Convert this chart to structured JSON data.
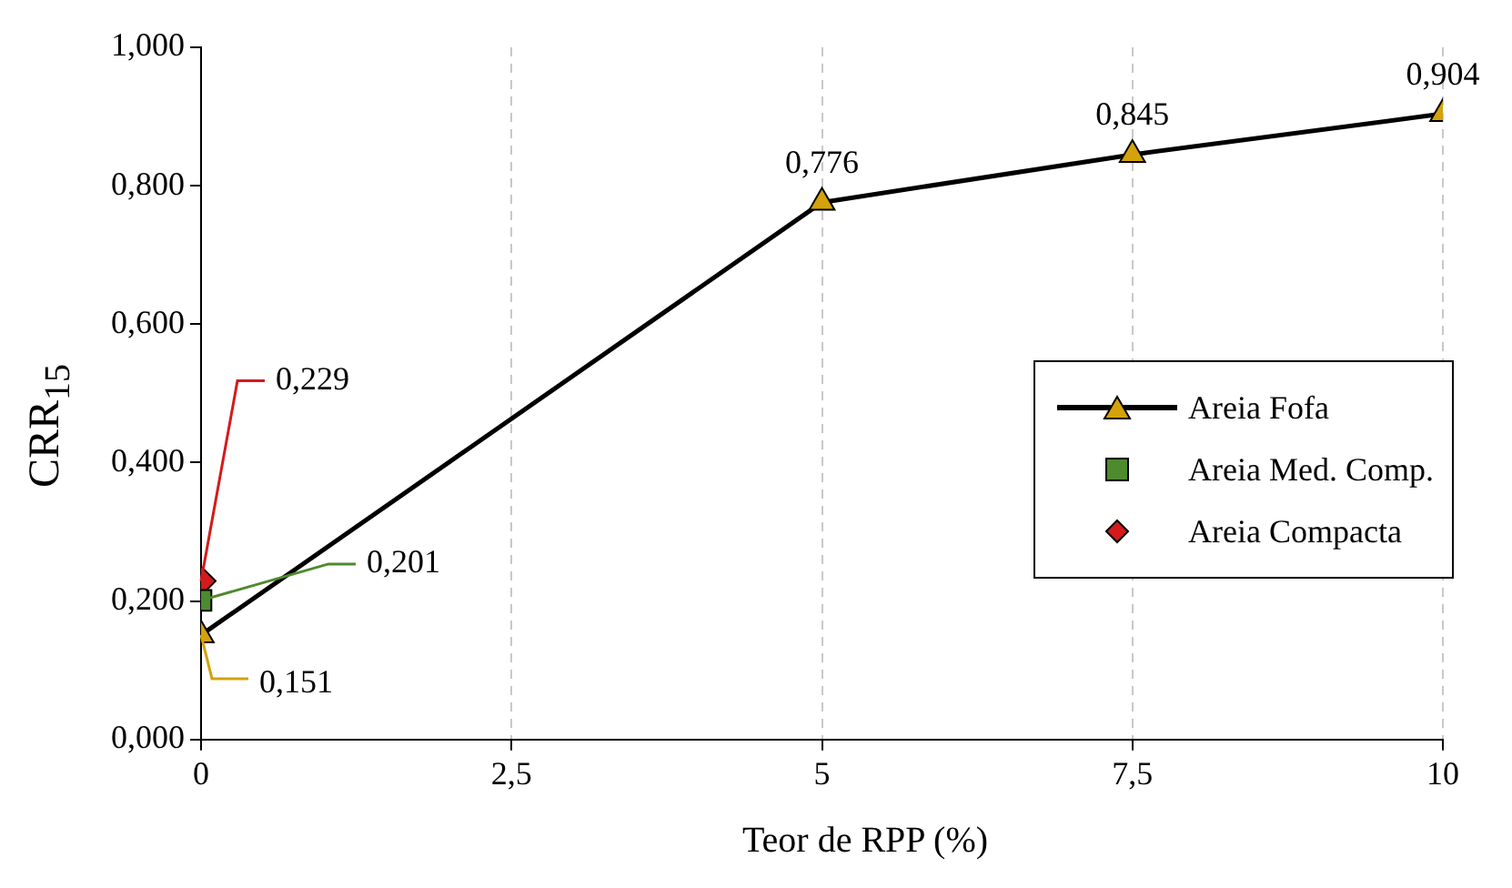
{
  "chart_data": {
    "type": "line",
    "xlabel": "Teor de RPP (%)",
    "ylabel": "CRR$_{15}$",
    "xlim": [
      0,
      10
    ],
    "xticks": [
      0,
      {
        "value": 2.5,
        "label": "2,5"
      },
      5,
      {
        "value": 7.5,
        "label": "7,5"
      },
      10
    ],
    "ylim": [
      0,
      1
    ],
    "yticks": [
      {
        "value": 0,
        "label": "0,000"
      },
      {
        "value": 0.2,
        "label": "0,200"
      },
      {
        "value": 0.4,
        "label": "0,400"
      },
      {
        "value": 0.6,
        "label": "0,600"
      },
      {
        "value": 0.8,
        "label": "0,800"
      },
      {
        "value": 1,
        "label": "1,000"
      }
    ],
    "grid": "x",
    "legend": "right",
    "series": [
      {
        "name": "Areia Fofa",
        "type": "line",
        "marker": "triangle",
        "color": "#d4a20a",
        "x": [
          0,
          5,
          7.5,
          10
        ],
        "values": [
          0.151,
          0.776,
          0.845,
          0.904
        ],
        "value_labels": [
          "0,151",
          "0,776",
          "0,845",
          "0,904"
        ]
      },
      {
        "name": "Areia Med. Comp.",
        "type": "scatter",
        "marker": "square",
        "color": "#4e8a2e",
        "x": [
          0
        ],
        "values": [
          0.201
        ],
        "value_labels": [
          "0,201"
        ]
      },
      {
        "name": "Areia Compacta",
        "type": "scatter",
        "marker": "diamond",
        "color": "#d41a1a",
        "x": [
          0
        ],
        "values": [
          0.229
        ],
        "value_labels": [
          "0,229"
        ]
      }
    ]
  }
}
